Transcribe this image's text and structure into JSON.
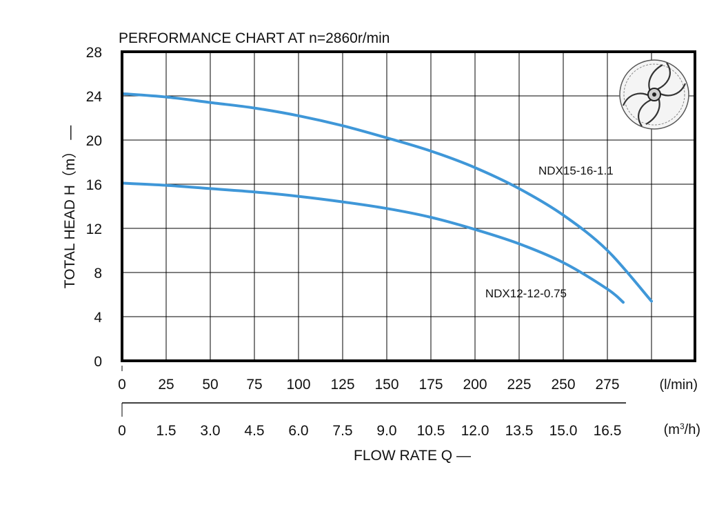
{
  "chart_data": {
    "type": "line",
    "title": "PERFORMANCE  CHART AT  n=2860r/min",
    "ylabel": "TOTAL HEAD  H（m）  —",
    "xlabel": "FLOW  RATE    Q   —",
    "ylim": [
      0,
      28
    ],
    "xlim": [
      0,
      300
    ],
    "y_ticks": [
      "0",
      "4",
      "8",
      "12",
      "16",
      "20",
      "24",
      "28"
    ],
    "x_ticks_lmin": [
      "0",
      "25",
      "50",
      "75",
      "100",
      "125",
      "150",
      "175",
      "200",
      "225",
      "250",
      "275"
    ],
    "x_unit_lmin": "(l/min)",
    "x_ticks_m3h": [
      "0",
      "1.5",
      "3.0",
      "4.5",
      "6.0",
      "7.5",
      "9.0",
      "10.5",
      "12.0",
      "13.5",
      "15.0",
      "16.5"
    ],
    "x_unit_m3h": "(m",
    "x_unit_m3h_sup": "3",
    "x_unit_m3h_tail": "/h)",
    "grid": true,
    "line_color": "#3f97d8",
    "series": [
      {
        "name": "NDX15-16-1.1",
        "x": [
          0,
          25,
          50,
          75,
          100,
          125,
          150,
          175,
          200,
          225,
          250,
          275,
          300
        ],
        "y": [
          24.2,
          23.9,
          23.4,
          22.9,
          22.2,
          21.3,
          20.2,
          19.0,
          17.5,
          15.6,
          13.2,
          10.0,
          5.4
        ]
      },
      {
        "name": "NDX12-12-0.75",
        "x": [
          0,
          25,
          50,
          75,
          100,
          125,
          150,
          175,
          200,
          225,
          250,
          275,
          284
        ],
        "y": [
          16.1,
          15.9,
          15.6,
          15.3,
          14.9,
          14.4,
          13.8,
          13.0,
          11.9,
          10.6,
          8.9,
          6.5,
          5.3
        ]
      }
    ]
  }
}
